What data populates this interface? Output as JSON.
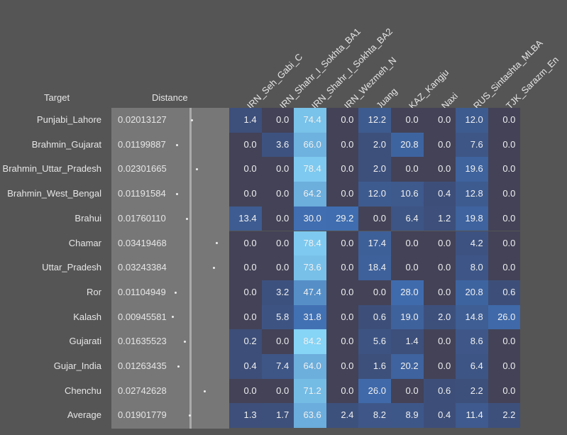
{
  "chart_data": {
    "type": "heatmap",
    "headers": {
      "target": "Target",
      "distance": "Distance"
    },
    "columns": [
      "IRN_Seh_Gabi_C",
      "IRN_Shahr_I_Sokhta_BA1",
      "IRN_Shahr_I_Sokhta_BA2",
      "IRN_Wezmeh_N",
      "Juang",
      "KAZ_Kangju",
      "Naxi",
      "RUS_Sintashta_MLBA",
      "TJK_Sarazm_En"
    ],
    "distance_axis_range": [
      -0.0247,
      0.041
    ],
    "value_range": [
      0,
      84.2
    ],
    "colors": {
      "zero": "#434257",
      "low": "#3d4e78",
      "mid": "#3f6db0",
      "high": "#86d4f6",
      "background": "#555555",
      "distance_bg": "#777777"
    },
    "rows": [
      {
        "target": "Punjabi_Lahore",
        "distance": "0.02013127",
        "values": [
          1.4,
          0.0,
          74.4,
          0.0,
          12.2,
          0.0,
          0.0,
          12.0,
          0.0
        ]
      },
      {
        "target": "Brahmin_Gujarat",
        "distance": "0.01199887",
        "values": [
          0.0,
          3.6,
          66.0,
          0.0,
          2.0,
          20.8,
          0.0,
          7.6,
          0.0
        ]
      },
      {
        "target": "Brahmin_Uttar_Pradesh",
        "distance": "0.02301665",
        "values": [
          0.0,
          0.0,
          78.4,
          0.0,
          2.0,
          0.0,
          0.0,
          19.6,
          0.0
        ]
      },
      {
        "target": "Brahmin_West_Bengal",
        "distance": "0.01191584",
        "values": [
          0.0,
          0.0,
          64.2,
          0.0,
          12.0,
          10.6,
          0.4,
          12.8,
          0.0
        ]
      },
      {
        "target": "Brahui",
        "distance": "0.01760110",
        "values": [
          13.4,
          0.0,
          30.0,
          29.2,
          0.0,
          6.4,
          1.2,
          19.8,
          0.0
        ]
      },
      {
        "target": "Chamar",
        "distance": "0.03419468",
        "values": [
          0.0,
          0.0,
          78.4,
          0.0,
          17.4,
          0.0,
          0.0,
          4.2,
          0.0
        ]
      },
      {
        "target": "Uttar_Pradesh",
        "distance": "0.03243384",
        "values": [
          0.0,
          0.0,
          73.6,
          0.0,
          18.4,
          0.0,
          0.0,
          8.0,
          0.0
        ]
      },
      {
        "target": "Ror",
        "distance": "0.01104949",
        "values": [
          0.0,
          3.2,
          47.4,
          0.0,
          0.0,
          28.0,
          0.0,
          20.8,
          0.6
        ]
      },
      {
        "target": "Kalash",
        "distance": "0.00945581",
        "values": [
          0.0,
          5.8,
          31.8,
          0.0,
          0.6,
          19.0,
          2.0,
          14.8,
          26.0
        ]
      },
      {
        "target": "Gujarati",
        "distance": "0.01635523",
        "values": [
          0.2,
          0.0,
          84.2,
          0.0,
          5.6,
          1.4,
          0.0,
          8.6,
          0.0
        ]
      },
      {
        "target": "Gujar_India",
        "distance": "0.01263435",
        "values": [
          0.4,
          7.4,
          64.0,
          0.0,
          1.6,
          20.2,
          0.0,
          6.4,
          0.0
        ]
      },
      {
        "target": "Chenchu",
        "distance": "0.02742628",
        "values": [
          0.0,
          0.0,
          71.2,
          0.0,
          26.0,
          0.0,
          0.6,
          2.2,
          0.0
        ]
      },
      {
        "target": "Average",
        "distance": "0.01901779",
        "values": [
          1.3,
          1.7,
          63.6,
          2.4,
          8.2,
          8.9,
          0.4,
          11.4,
          2.2
        ]
      }
    ]
  }
}
